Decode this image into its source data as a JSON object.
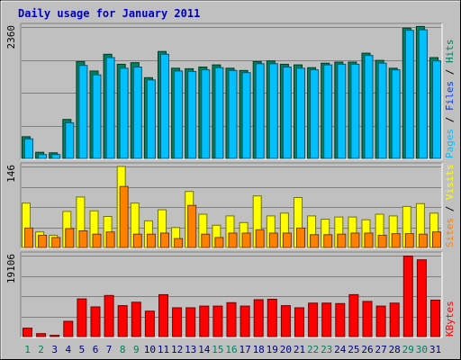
{
  "chart_data": {
    "type": "bar",
    "title": "Daily usage for January 2011",
    "categories": [
      "1",
      "2",
      "3",
      "4",
      "5",
      "6",
      "7",
      "8",
      "9",
      "10",
      "11",
      "12",
      "13",
      "14",
      "15",
      "16",
      "17",
      "18",
      "19",
      "20",
      "21",
      "22",
      "23",
      "24",
      "25",
      "26",
      "27",
      "28",
      "29",
      "30",
      "31"
    ],
    "weekend_days": [
      "1",
      "2",
      "8",
      "9",
      "15",
      "16",
      "22",
      "23",
      "29",
      "30"
    ],
    "panels": [
      {
        "id": "hits",
        "max_label": "2360",
        "ylim": [
          0,
          2360
        ],
        "legend": [
          "Pages",
          "Files",
          "Hits"
        ],
        "legend_colors": [
          "#00c0ff",
          "#0040ff",
          "#00805c"
        ],
        "series": [
          {
            "name": "Hits",
            "color": "#00805c",
            "values": [
              390,
              110,
              100,
              700,
              1740,
              1570,
              1870,
              1690,
              1720,
              1450,
              1920,
              1620,
              1610,
              1640,
              1680,
              1620,
              1580,
              1740,
              1750,
              1690,
              1680,
              1630,
              1710,
              1730,
              1730,
              1890,
              1760,
              1620,
              2340,
              2370,
              1810
            ]
          },
          {
            "name": "Files",
            "color": "#00c0ff",
            "values": [
              350,
              70,
              70,
              640,
              1670,
              1500,
              1810,
              1620,
              1640,
              1410,
              1870,
              1570,
              1560,
              1590,
              1630,
              1580,
              1540,
              1700,
              1700,
              1640,
              1620,
              1590,
              1680,
              1690,
              1690,
              1850,
              1710,
              1590,
              2300,
              2310,
              1750
            ]
          }
        ]
      },
      {
        "id": "visits",
        "max_label": "146",
        "ylim": [
          0,
          146
        ],
        "legend": [
          "Sites",
          "Visits"
        ],
        "legend_colors": [
          "#ff8000",
          "#ffff00"
        ],
        "series": [
          {
            "name": "Visits",
            "color": "#ffff00",
            "values": [
              80,
              28,
              22,
              65,
              91,
              66,
              56,
              146,
              80,
              48,
              68,
              36,
              101,
              60,
              40,
              57,
              45,
              93,
              57,
              62,
              90,
              57,
              51,
              55,
              55,
              50,
              60,
              57,
              74,
              79,
              62
            ]
          },
          {
            "name": "Sites",
            "color": "#ff8000",
            "values": [
              35,
              22,
              18,
              34,
              30,
              24,
              28,
              110,
              24,
              24,
              26,
              16,
              76,
              24,
              18,
              26,
              26,
              32,
              26,
              26,
              35,
              23,
              23,
              24,
              26,
              26,
              22,
              25,
              25,
              24,
              28
            ]
          }
        ]
      },
      {
        "id": "kbytes",
        "max_label": "19106",
        "ylim": [
          0,
          19106
        ],
        "legend": [
          "KBytes"
        ],
        "legend_colors": [
          "#ff0000"
        ],
        "series": [
          {
            "name": "KBytes",
            "color": "#ff0000",
            "values": [
              2000,
              700,
              300,
              3600,
              8900,
              7000,
              9700,
              7300,
              8100,
              6000,
              9900,
              6800,
              6800,
              7200,
              7200,
              8000,
              7200,
              8700,
              8800,
              7300,
              6800,
              7900,
              7900,
              7800,
              9900,
              8300,
              7200,
              7900,
              19000,
              18100,
              8600
            ]
          }
        ]
      }
    ]
  }
}
